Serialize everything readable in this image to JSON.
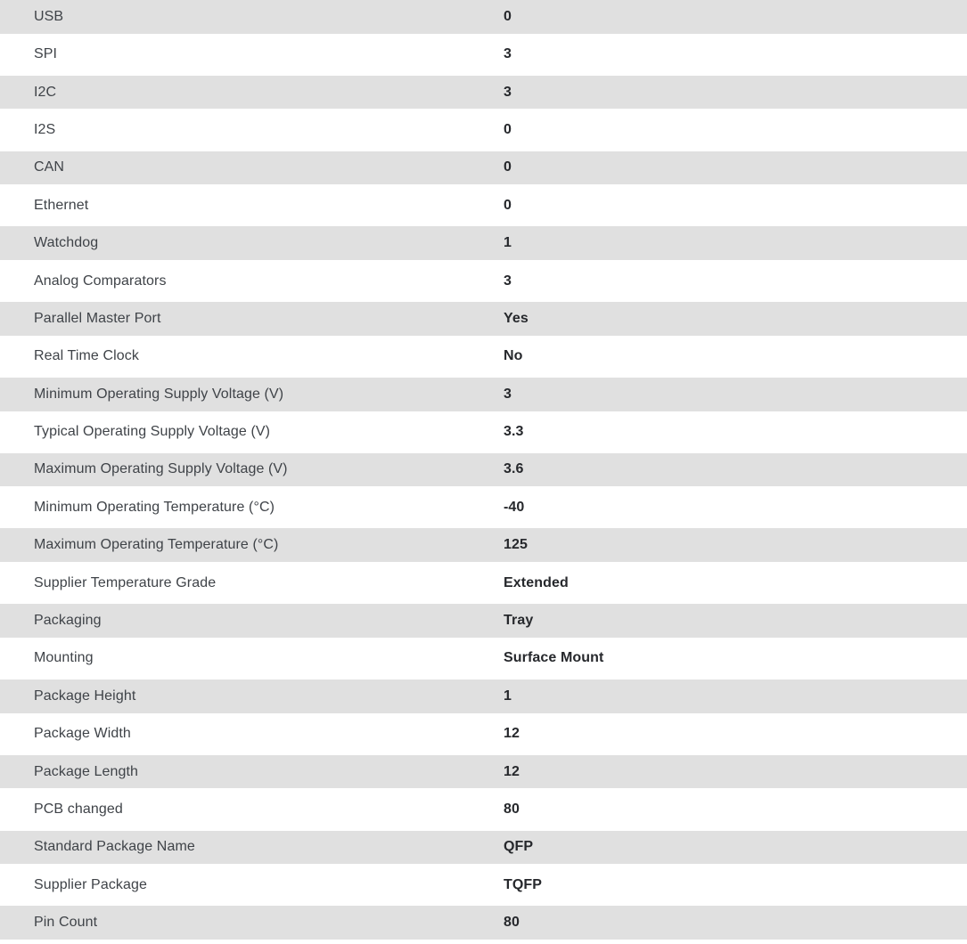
{
  "table": {
    "colors": {
      "row_alt_bg": "#e0e0e0",
      "row_bg": "#ffffff",
      "label_text": "#3f4348",
      "value_text": "#26282c"
    },
    "rows": [
      {
        "label": "USB",
        "value": "0"
      },
      {
        "label": "SPI",
        "value": "3"
      },
      {
        "label": "I2C",
        "value": "3"
      },
      {
        "label": "I2S",
        "value": "0"
      },
      {
        "label": "CAN",
        "value": "0"
      },
      {
        "label": "Ethernet",
        "value": "0"
      },
      {
        "label": "Watchdog",
        "value": "1"
      },
      {
        "label": "Analog Comparators",
        "value": "3"
      },
      {
        "label": "Parallel Master Port",
        "value": "Yes"
      },
      {
        "label": "Real Time Clock",
        "value": "No"
      },
      {
        "label": "Minimum Operating Supply Voltage (V)",
        "value": "3"
      },
      {
        "label": "Typical Operating Supply Voltage (V)",
        "value": "3.3"
      },
      {
        "label": "Maximum Operating Supply Voltage (V)",
        "value": "3.6"
      },
      {
        "label": "Minimum Operating Temperature (°C)",
        "value": "-40"
      },
      {
        "label": "Maximum Operating Temperature (°C)",
        "value": "125"
      },
      {
        "label": "Supplier Temperature Grade",
        "value": "Extended"
      },
      {
        "label": "Packaging",
        "value": "Tray"
      },
      {
        "label": "Mounting",
        "value": "Surface Mount"
      },
      {
        "label": "Package Height",
        "value": "1"
      },
      {
        "label": "Package Width",
        "value": "12"
      },
      {
        "label": "Package Length",
        "value": "12"
      },
      {
        "label": "PCB changed",
        "value": "80"
      },
      {
        "label": "Standard Package Name",
        "value": "QFP"
      },
      {
        "label": "Supplier Package",
        "value": "TQFP"
      },
      {
        "label": "Pin Count",
        "value": "80"
      }
    ]
  }
}
